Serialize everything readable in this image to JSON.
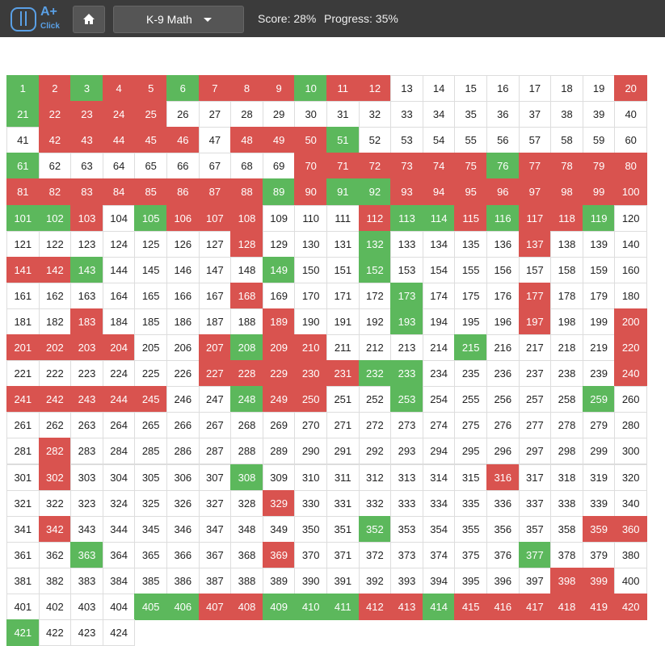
{
  "header": {
    "logo": "A+",
    "logo_sub": "Click",
    "dropdown": "K-9 Math",
    "score": "Score: 28%",
    "progress": "Progress: 35%"
  },
  "grid": {
    "colors": {
      "g": "#5cb85c",
      "r": "#d9534f",
      "w": "#ffffff"
    },
    "rows": [
      {
        "numbers": [
          1,
          2,
          3,
          4,
          5,
          6,
          7,
          8,
          9,
          10,
          11,
          12,
          13,
          14,
          15,
          16,
          17,
          18,
          19,
          20
        ],
        "status": "grgrrgrrrgrrwwwwwwwr"
      },
      {
        "numbers": [
          21,
          22,
          23,
          24,
          25,
          26,
          27,
          28,
          29,
          30,
          31,
          32,
          33,
          34,
          35,
          36,
          37,
          38,
          39,
          40
        ],
        "status": "grrrrwwwwwwwwwwwwwww"
      },
      {
        "numbers": [
          41,
          42,
          43,
          44,
          45,
          46,
          47,
          48,
          49,
          50,
          51,
          52,
          53,
          54,
          55,
          56,
          57,
          58,
          59,
          60
        ],
        "status": "wrrrrrwrrrgwwwwwwwww"
      },
      {
        "numbers": [
          61,
          62,
          63,
          64,
          65,
          66,
          67,
          68,
          69,
          70,
          71,
          72,
          73,
          74,
          75,
          76,
          77,
          78,
          79,
          80
        ],
        "status": "gwwwwwwwwrrrrrrgrrrr"
      },
      {
        "numbers": [
          81,
          82,
          83,
          84,
          85,
          86,
          87,
          88,
          89,
          90,
          91,
          92,
          93,
          94,
          95,
          96,
          97,
          98,
          99,
          100
        ],
        "status": "rrrrrrrrgrggrrrrrrrr"
      },
      {
        "numbers": [
          101,
          102,
          103,
          104,
          105,
          106,
          107,
          108,
          109,
          110,
          111,
          112,
          113,
          114,
          115,
          116,
          117,
          118,
          119,
          120
        ],
        "status": "ggrwgrrrwwwrggrgrrgw"
      },
      {
        "numbers": [
          121,
          122,
          123,
          124,
          125,
          126,
          127,
          128,
          129,
          130,
          131,
          132,
          133,
          134,
          135,
          136,
          137,
          138,
          139,
          140
        ],
        "status": "wwwwwwwrwwwgwwwwrwww"
      },
      {
        "numbers": [
          141,
          142,
          143,
          144,
          145,
          146,
          147,
          148,
          149,
          150,
          151,
          152,
          153,
          154,
          155,
          156,
          157,
          158,
          159,
          160
        ],
        "status": "rrgwwwwwgwwgwwwwwwww"
      },
      {
        "numbers": [
          161,
          162,
          163,
          164,
          165,
          166,
          167,
          168,
          169,
          170,
          171,
          172,
          173,
          174,
          175,
          176,
          177,
          178,
          179,
          180
        ],
        "status": "wwwwwwwrwwwwgwwwrwww"
      },
      {
        "numbers": [
          181,
          182,
          183,
          184,
          185,
          186,
          187,
          188,
          189,
          190,
          191,
          192,
          193,
          194,
          195,
          196,
          197,
          198,
          199,
          200
        ],
        "status": "wwrwwwwwrwwwgwwwrwwr"
      },
      {
        "numbers": [
          201,
          202,
          203,
          204,
          205,
          206,
          207,
          208,
          209,
          210,
          211,
          212,
          213,
          214,
          215,
          216,
          217,
          218,
          219,
          220
        ],
        "status": "rrrrwwrgrrwwwwgwwwwr"
      },
      {
        "numbers": [
          221,
          222,
          223,
          224,
          225,
          226,
          227,
          228,
          229,
          230,
          231,
          232,
          233,
          234,
          235,
          236,
          237,
          238,
          239,
          240
        ],
        "status": "wwwwwwrrrrrggwwwwwwr"
      },
      {
        "numbers": [
          241,
          242,
          243,
          244,
          245,
          246,
          247,
          248,
          249,
          250,
          251,
          252,
          253,
          254,
          255,
          256,
          257,
          258,
          259,
          260
        ],
        "status": "rrrrrwwgrrwwgwwwwwgw"
      },
      {
        "numbers": [
          261,
          262,
          263,
          264,
          265,
          266,
          267,
          268,
          269,
          270,
          271,
          272,
          273,
          274,
          275,
          276,
          277,
          278,
          279,
          280
        ],
        "status": "wwwwwwwwwwwwwwwwwwww"
      },
      {
        "numbers": [
          281,
          282,
          283,
          284,
          285,
          286,
          287,
          288,
          289,
          290,
          291,
          292,
          293,
          294,
          295,
          296,
          297,
          298,
          299,
          300
        ],
        "status": "wrwwwwwwwwwwwwwwwwww"
      },
      {
        "numbers": [
          301,
          302,
          303,
          304,
          305,
          306,
          307,
          308,
          309,
          310,
          311,
          312,
          313,
          314,
          315,
          316,
          317,
          318,
          319,
          320
        ],
        "status": "wrwwwwwgwwwwwwwrwwww"
      },
      {
        "numbers": [
          321,
          322,
          323,
          324,
          325,
          326,
          327,
          328,
          329,
          330,
          331,
          332,
          333,
          334,
          335,
          336,
          337,
          338,
          339,
          340
        ],
        "status": "wwwwwwwwrwwwwwwwwwww"
      },
      {
        "numbers": [
          341,
          342,
          343,
          344,
          345,
          346,
          347,
          348,
          349,
          350,
          351,
          352,
          353,
          354,
          355,
          356,
          357,
          358,
          359,
          360
        ],
        "status": "wrwwwwwwwwwgwwwwwwrr"
      },
      {
        "numbers": [
          361,
          362,
          363,
          364,
          365,
          366,
          367,
          368,
          369,
          370,
          371,
          372,
          373,
          374,
          375,
          376,
          377,
          378,
          379,
          380
        ],
        "status": "wwgwwwwwrwwwwwwwgwww"
      },
      {
        "numbers": [
          381,
          382,
          383,
          384,
          385,
          386,
          387,
          388,
          389,
          390,
          391,
          392,
          393,
          394,
          395,
          396,
          397,
          398,
          399,
          400
        ],
        "status": "wwwwwwwwwwwwwwwwwrrw"
      },
      {
        "numbers": [
          401,
          402,
          403,
          404,
          405,
          406,
          407,
          408,
          409,
          410,
          411,
          412,
          413,
          414,
          415,
          416,
          417,
          418,
          419,
          420
        ],
        "status": "wwwwggrrgggrrgrrrrrr"
      },
      {
        "numbers": [
          421,
          422,
          423,
          424
        ],
        "status": "gwww"
      }
    ]
  }
}
